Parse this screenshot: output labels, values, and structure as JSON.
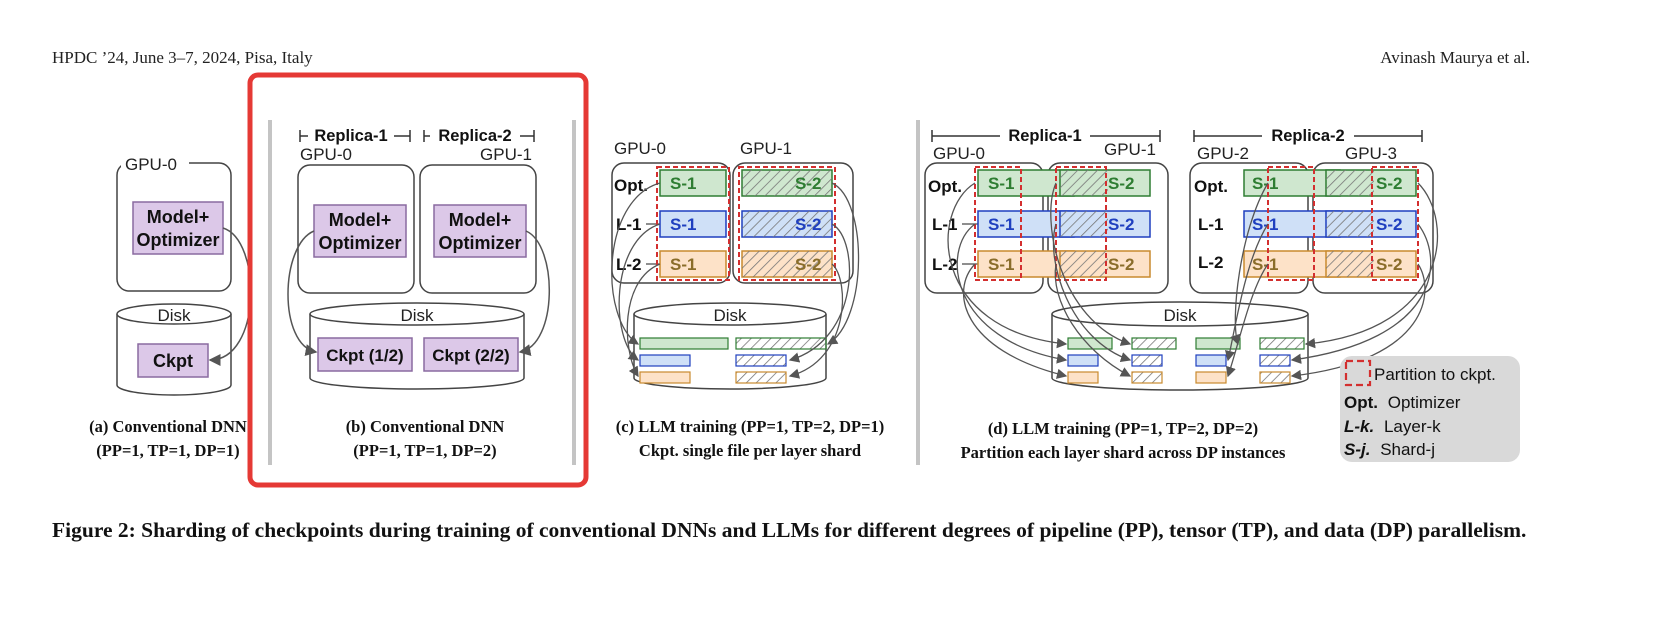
{
  "header": {
    "left": "HPDC ’24, June 3–7, 2024, Pisa, Italy",
    "right": "Avinash Maurya et al."
  },
  "figure": {
    "panel_a": {
      "gpu": "GPU-0",
      "block": [
        "Model+",
        "Optimizer"
      ],
      "disk": "Disk",
      "ckpt": "Ckpt",
      "caption": [
        "(a) Conventional DNN",
        "(PP=1, TP=1, DP=1)"
      ]
    },
    "panel_b": {
      "replica1": "Replica-1",
      "replica2": "Replica-2",
      "gpu0": "GPU-0",
      "gpu1": "GPU-1",
      "block": [
        "Model+",
        "Optimizer"
      ],
      "disk": "Disk",
      "ckpt1": "Ckpt (1/2)",
      "ckpt2": "Ckpt (2/2)",
      "caption": [
        "(b) Conventional DNN",
        "(PP=1, TP=1, DP=2)"
      ]
    },
    "panel_c": {
      "gpu0": "GPU-0",
      "gpu1": "GPU-1",
      "rows": [
        "Opt.",
        "L-1",
        "L-2"
      ],
      "shard1": "S-1",
      "shard2": "S-2",
      "disk": "Disk",
      "caption": [
        "(c) LLM training (PP=1, TP=2, DP=1)",
        "Ckpt. single file per layer shard"
      ]
    },
    "panel_d": {
      "replica1": "Replica-1",
      "replica2": "Replica-2",
      "gpus": [
        "GPU-0",
        "GPU-1",
        "GPU-2",
        "GPU-3"
      ],
      "rows": [
        "Opt.",
        "L-1",
        "L-2"
      ],
      "shard1": "S-1",
      "shard2": "S-2",
      "disk": "Disk",
      "caption": [
        "(d) LLM training (PP=1, TP=2, DP=2)",
        "Partition each layer shard across DP instances"
      ]
    },
    "legend": {
      "partition": "Partition to ckpt.",
      "opt_key": "Opt.",
      "opt_val": "Optimizer",
      "layer_key": "L-k.",
      "layer_val": "Layer-k",
      "shard_key": "S-j.",
      "shard_val": "Shard-j"
    },
    "colors": {
      "opt": "#2e7d32",
      "layer1": "#1f3fbf",
      "layer2": "#8a6d2a",
      "model_block": "#dcc8e8",
      "highlight": "#e53935"
    }
  },
  "caption": "Figure 2: Sharding of checkpoints during training of conventional DNNs and LLMs for different degrees of pipeline (PP), tensor (TP), and data (DP) parallelism."
}
